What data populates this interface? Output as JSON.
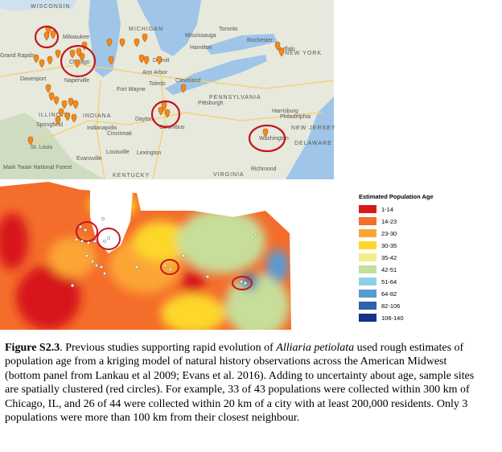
{
  "map_labels": [
    "WISCONSIN",
    "Milwaukee",
    "MICHIGAN",
    "Grand Rapids",
    "Toronto",
    "Mississauga",
    "Hamilton",
    "Rochester",
    "NEW YORK",
    "Buffalo",
    "Chicago",
    "Naperville",
    "Davenport",
    "Detroit",
    "Ann Arbor",
    "Cleveland",
    "Fort Wayne",
    "Toledo",
    "Pittsburgh",
    "PENNSYLVANIA",
    "ILLINOIS",
    "INDIANA",
    "Indianapolis",
    "Springfield",
    "Dayton",
    "Columbus",
    "Cincinnati",
    "Harrisburg",
    "Philadelphia",
    "NEW JERSEY",
    "Washington",
    "DELAWARE",
    "St. Louis",
    "Louisville",
    "Evansville",
    "Lexington",
    "KENTUCKY",
    "VIRGINIA",
    "Richmond",
    "Mark Twain National Forest"
  ],
  "legend": {
    "title": "Estimated Population Age",
    "items": [
      {
        "label": "1-14",
        "color": "#d7191c"
      },
      {
        "label": "14-23",
        "color": "#f46d2a"
      },
      {
        "label": "23-30",
        "color": "#fca536"
      },
      {
        "label": "30-35",
        "color": "#fdd72a"
      },
      {
        "label": "35-42",
        "color": "#f3ec8a"
      },
      {
        "label": "42-51",
        "color": "#c6de9a"
      },
      {
        "label": "51-64",
        "color": "#8fd0e6"
      },
      {
        "label": "64-82",
        "color": "#5a9ad4"
      },
      {
        "label": "82-106",
        "color": "#2d62ad"
      },
      {
        "label": "106-140",
        "color": "#17308a"
      }
    ]
  },
  "caption": {
    "label": "Figure S2.3",
    "lead": ". Previous studies supporting rapid evolution of ",
    "species": "Alliaria petiolata",
    "body": " used rough estimates of population age from a kriging model of natural history observations across the American Midwest (bottom panel from Lankau et al 2009; Evans et al. 2016). Adding to uncertainty about age, sample sites are spatially clustered (red circles). For example, 33 of 43 populations were collected within 300 km of Chicago, IL, and 26 of 44 were collected within 20 km of a city with at least 200,000 residents. Only 3 populations were more than 100 km from their closest neighbour."
  }
}
